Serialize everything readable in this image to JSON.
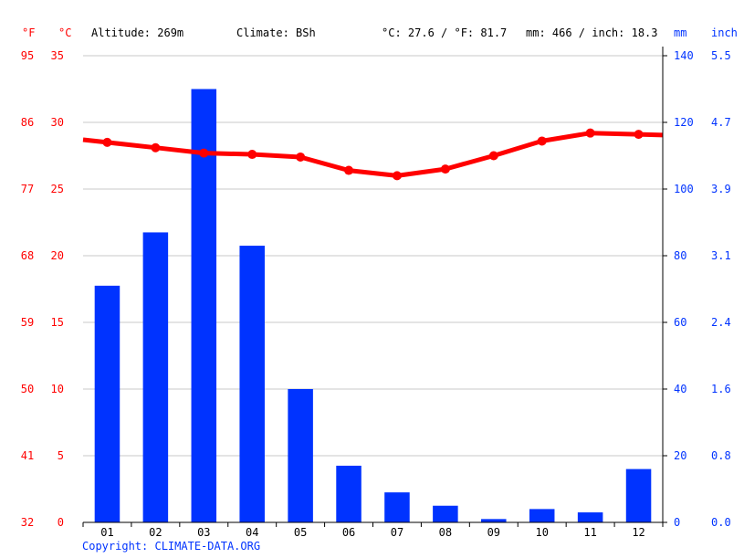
{
  "header": {
    "unit_f": "°F",
    "unit_c": "°C",
    "altitude": "Altitude: 269m",
    "climate": "Climate: BSh",
    "temp_avg": "°C: 27.6 / °F: 81.7",
    "precip_total": "mm: 466 / inch: 18.3",
    "unit_mm": "mm",
    "unit_inch": "inch"
  },
  "copyright": "Copyright: CLIMATE-DATA.ORG",
  "colors": {
    "temperature": "#ff0000",
    "precipitation": "#0033ff"
  },
  "chart_data": {
    "type": "bar",
    "categories": [
      "01",
      "02",
      "03",
      "04",
      "05",
      "06",
      "07",
      "08",
      "09",
      "10",
      "11",
      "12"
    ],
    "series": [
      {
        "type": "bar",
        "axis": "right",
        "values": [
          71,
          87,
          130,
          83,
          40,
          17,
          9,
          5,
          1,
          4,
          3,
          16
        ]
      },
      {
        "type": "line",
        "axis": "left",
        "values": [
          28.5,
          28.1,
          27.7,
          27.6,
          27.4,
          26.4,
          26.0,
          26.5,
          27.5,
          28.6,
          29.2,
          29.1
        ]
      }
    ],
    "y_left_c": {
      "ticks": [
        "0",
        "5",
        "10",
        "15",
        "20",
        "25",
        "30",
        "35"
      ],
      "range": [
        0,
        35
      ]
    },
    "y_left_f": {
      "ticks": [
        "32",
        "41",
        "50",
        "59",
        "68",
        "77",
        "86",
        "95"
      ]
    },
    "y_right_mm": {
      "ticks": [
        "0",
        "20",
        "40",
        "60",
        "80",
        "100",
        "120",
        "140"
      ],
      "range": [
        0,
        140
      ]
    },
    "y_right_inch": {
      "ticks": [
        "0.0",
        "0.8",
        "1.6",
        "2.4",
        "3.1",
        "3.9",
        "4.7",
        "5.5"
      ]
    },
    "grid": true
  }
}
